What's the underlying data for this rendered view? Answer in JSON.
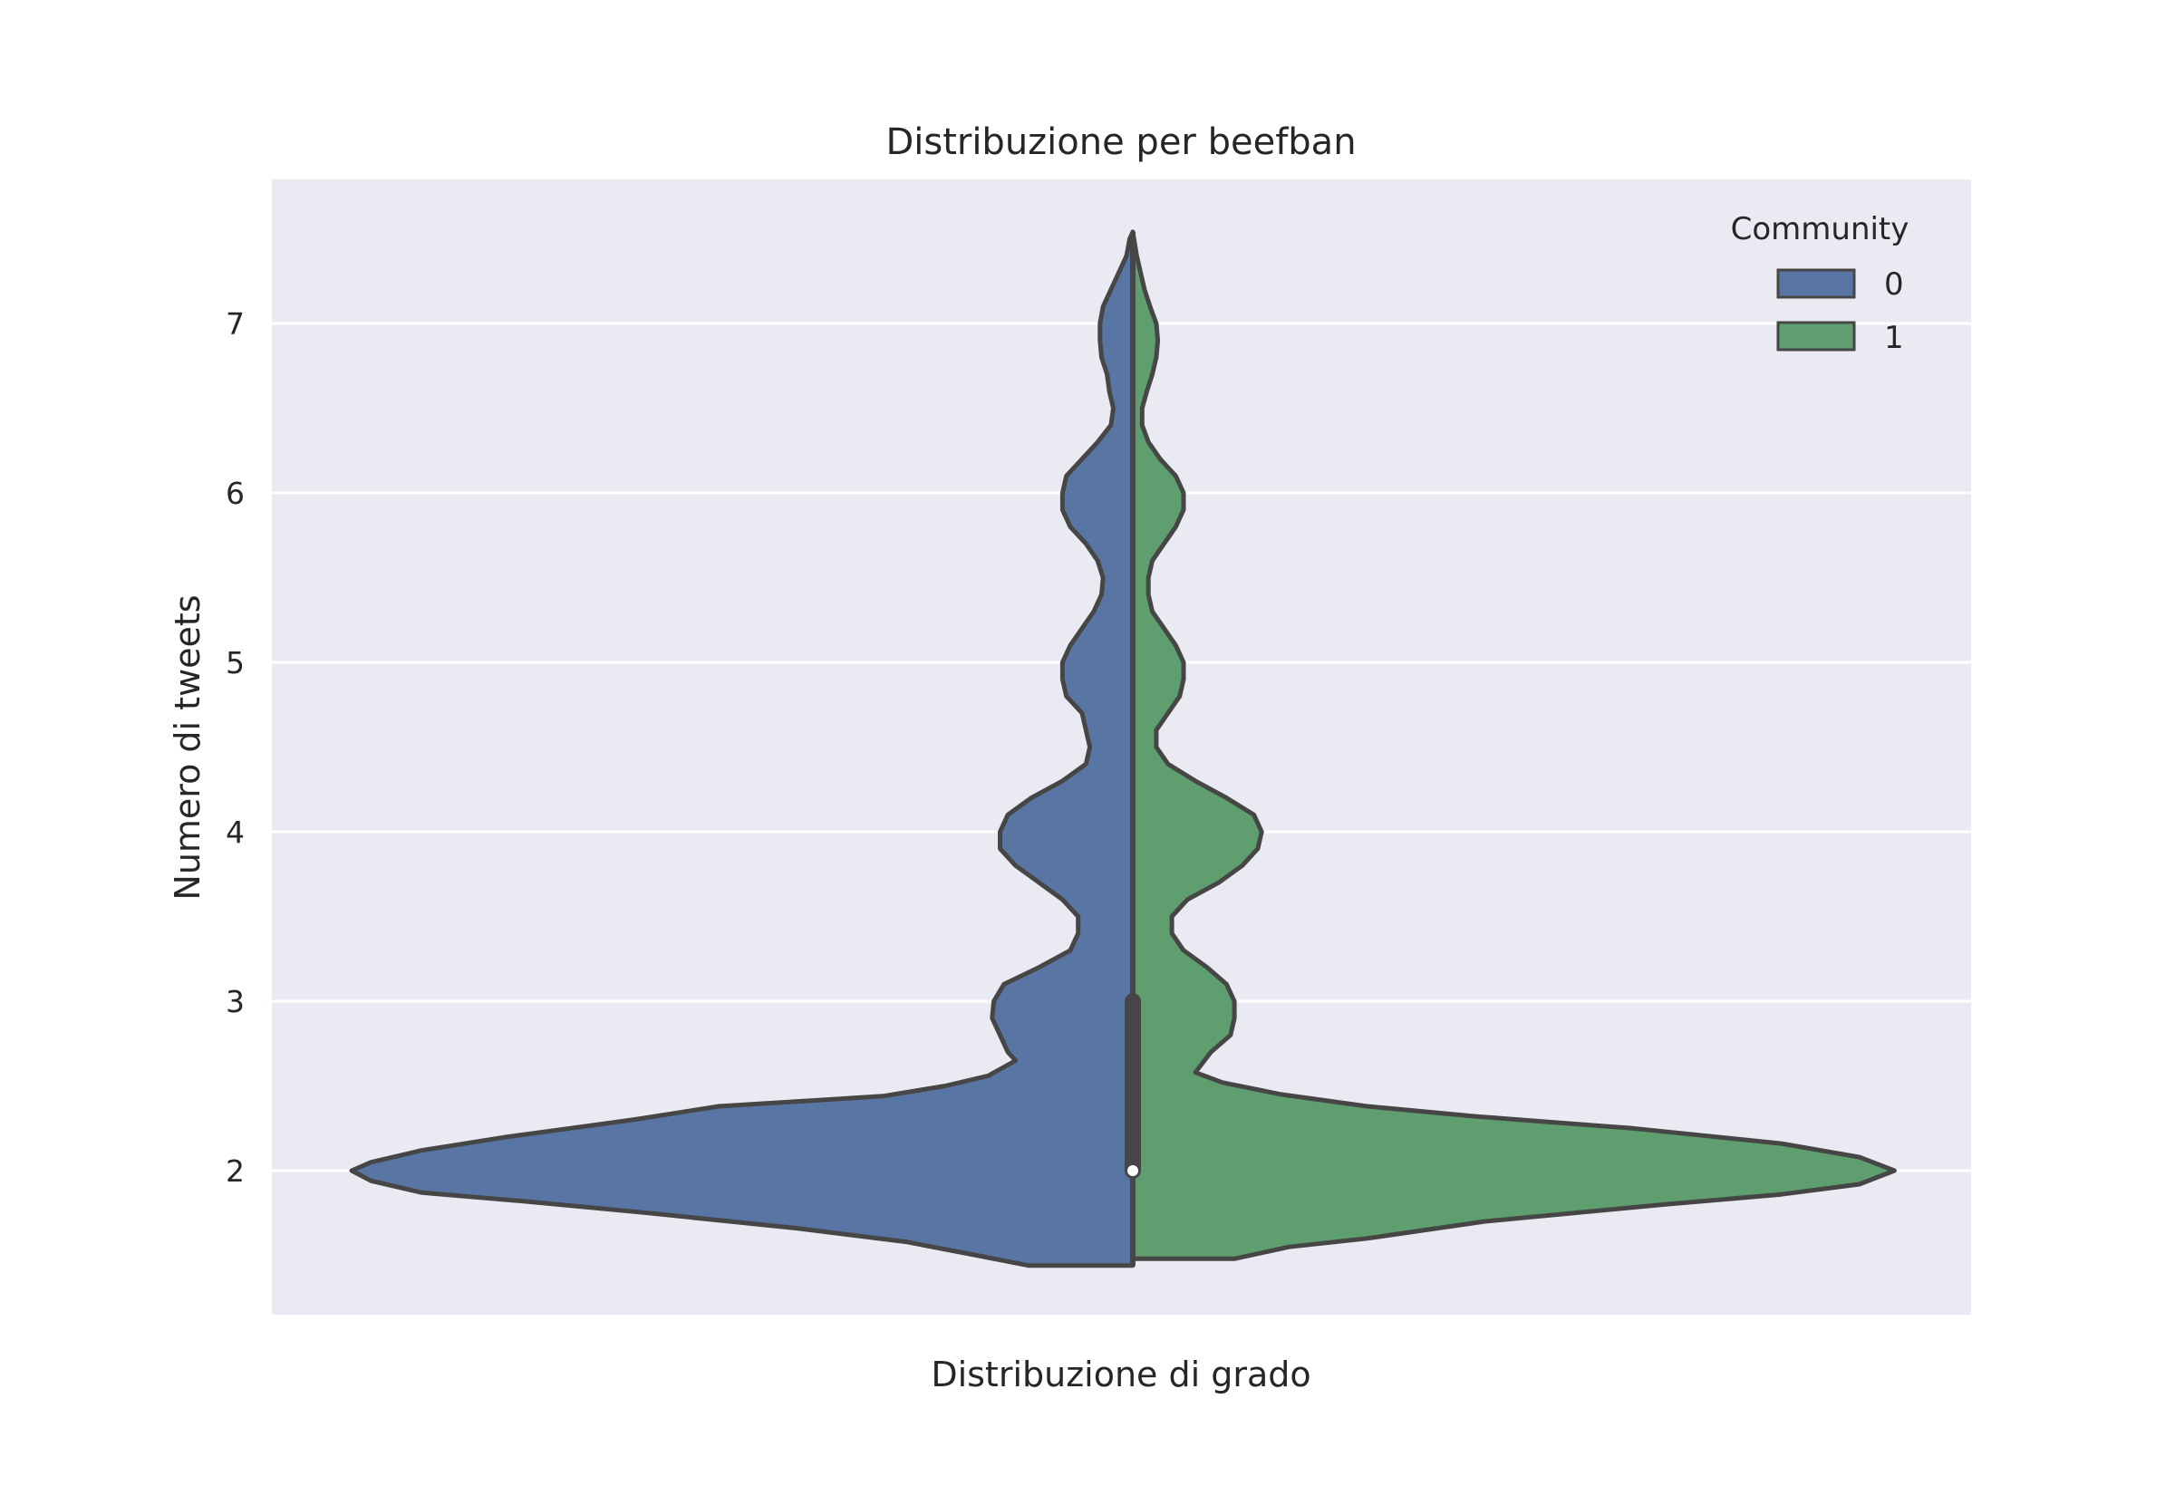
{
  "chart_data": {
    "type": "violin",
    "title": "Distribuzione per beefban",
    "xlabel": "Distribuzione di grado",
    "ylabel": "Numero di tweets",
    "ylim": [
      1.15,
      7.85
    ],
    "yticks": [
      2,
      3,
      4,
      5,
      6,
      7
    ],
    "grid": true,
    "split": true,
    "legend": {
      "title": "Community",
      "position": "top-right",
      "entries": [
        {
          "label": "0",
          "color": "#5875a4"
        },
        {
          "label": "1",
          "color": "#5f9e6e"
        }
      ]
    },
    "background_color": "#eaeaf2",
    "series": [
      {
        "name": "0",
        "color": "#5875a4",
        "side": "left",
        "density": [
          [
            1.44,
            0.133
          ],
          [
            1.5,
            0.2
          ],
          [
            1.58,
            0.29
          ],
          [
            1.66,
            0.43
          ],
          [
            1.75,
            0.62
          ],
          [
            1.82,
            0.78
          ],
          [
            1.87,
            0.91
          ],
          [
            1.94,
            0.975
          ],
          [
            2.0,
            1.0
          ],
          [
            2.05,
            0.975
          ],
          [
            2.12,
            0.91
          ],
          [
            2.2,
            0.8
          ],
          [
            2.3,
            0.64
          ],
          [
            2.38,
            0.53
          ],
          [
            2.44,
            0.32
          ],
          [
            2.5,
            0.24
          ],
          [
            2.56,
            0.185
          ],
          [
            2.65,
            0.15
          ],
          [
            2.7,
            0.16
          ],
          [
            2.8,
            0.17
          ],
          [
            2.9,
            0.18
          ],
          [
            3.0,
            0.178
          ],
          [
            3.1,
            0.165
          ],
          [
            3.2,
            0.12
          ],
          [
            3.3,
            0.08
          ],
          [
            3.4,
            0.07
          ],
          [
            3.5,
            0.07
          ],
          [
            3.6,
            0.09
          ],
          [
            3.7,
            0.12
          ],
          [
            3.8,
            0.15
          ],
          [
            3.9,
            0.17
          ],
          [
            4.0,
            0.17
          ],
          [
            4.1,
            0.16
          ],
          [
            4.2,
            0.13
          ],
          [
            4.3,
            0.09
          ],
          [
            4.4,
            0.06
          ],
          [
            4.5,
            0.055
          ],
          [
            4.6,
            0.06
          ],
          [
            4.7,
            0.065
          ],
          [
            4.8,
            0.085
          ],
          [
            4.9,
            0.09
          ],
          [
            5.0,
            0.09
          ],
          [
            5.1,
            0.08
          ],
          [
            5.2,
            0.065
          ],
          [
            5.3,
            0.05
          ],
          [
            5.4,
            0.04
          ],
          [
            5.5,
            0.038
          ],
          [
            5.6,
            0.045
          ],
          [
            5.7,
            0.06
          ],
          [
            5.8,
            0.08
          ],
          [
            5.9,
            0.09
          ],
          [
            6.0,
            0.09
          ],
          [
            6.1,
            0.085
          ],
          [
            6.2,
            0.065
          ],
          [
            6.3,
            0.045
          ],
          [
            6.4,
            0.028
          ],
          [
            6.5,
            0.025
          ],
          [
            6.6,
            0.03
          ],
          [
            6.7,
            0.033
          ],
          [
            6.8,
            0.04
          ],
          [
            6.9,
            0.042
          ],
          [
            7.0,
            0.042
          ],
          [
            7.1,
            0.038
          ],
          [
            7.2,
            0.028
          ],
          [
            7.3,
            0.018
          ],
          [
            7.4,
            0.008
          ],
          [
            7.5,
            0.004
          ],
          [
            7.54,
            0.0
          ]
        ]
      },
      {
        "name": "1",
        "color": "#5f9e6e",
        "side": "right",
        "density": [
          [
            1.48,
            0.13
          ],
          [
            1.55,
            0.2
          ],
          [
            1.6,
            0.3
          ],
          [
            1.7,
            0.45
          ],
          [
            1.8,
            0.68
          ],
          [
            1.86,
            0.83
          ],
          [
            1.92,
            0.93
          ],
          [
            2.0,
            0.975
          ],
          [
            2.08,
            0.93
          ],
          [
            2.16,
            0.83
          ],
          [
            2.25,
            0.64
          ],
          [
            2.32,
            0.44
          ],
          [
            2.38,
            0.3
          ],
          [
            2.45,
            0.19
          ],
          [
            2.52,
            0.115
          ],
          [
            2.58,
            0.08
          ],
          [
            2.7,
            0.1
          ],
          [
            2.8,
            0.125
          ],
          [
            2.9,
            0.13
          ],
          [
            3.0,
            0.13
          ],
          [
            3.1,
            0.12
          ],
          [
            3.2,
            0.095
          ],
          [
            3.3,
            0.065
          ],
          [
            3.4,
            0.05
          ],
          [
            3.5,
            0.05
          ],
          [
            3.6,
            0.07
          ],
          [
            3.7,
            0.11
          ],
          [
            3.8,
            0.14
          ],
          [
            3.9,
            0.16
          ],
          [
            4.0,
            0.165
          ],
          [
            4.1,
            0.155
          ],
          [
            4.2,
            0.12
          ],
          [
            4.3,
            0.08
          ],
          [
            4.4,
            0.045
          ],
          [
            4.5,
            0.03
          ],
          [
            4.6,
            0.03
          ],
          [
            4.7,
            0.045
          ],
          [
            4.8,
            0.06
          ],
          [
            4.9,
            0.065
          ],
          [
            5.0,
            0.065
          ],
          [
            5.1,
            0.055
          ],
          [
            5.2,
            0.04
          ],
          [
            5.3,
            0.025
          ],
          [
            5.4,
            0.02
          ],
          [
            5.5,
            0.02
          ],
          [
            5.6,
            0.025
          ],
          [
            5.7,
            0.04
          ],
          [
            5.8,
            0.055
          ],
          [
            5.9,
            0.065
          ],
          [
            6.0,
            0.065
          ],
          [
            6.1,
            0.055
          ],
          [
            6.2,
            0.035
          ],
          [
            6.3,
            0.02
          ],
          [
            6.4,
            0.012
          ],
          [
            6.5,
            0.012
          ],
          [
            6.6,
            0.018
          ],
          [
            6.7,
            0.025
          ],
          [
            6.8,
            0.03
          ],
          [
            6.9,
            0.032
          ],
          [
            7.0,
            0.03
          ],
          [
            7.1,
            0.022
          ],
          [
            7.2,
            0.015
          ],
          [
            7.3,
            0.01
          ],
          [
            7.4,
            0.005
          ],
          [
            7.54,
            0.0
          ]
        ]
      }
    ],
    "inner_box": {
      "q1": 2.0,
      "median": 2.0,
      "q3": 3.0,
      "whisker_low": 1.44,
      "whisker_high": 7.54
    }
  }
}
